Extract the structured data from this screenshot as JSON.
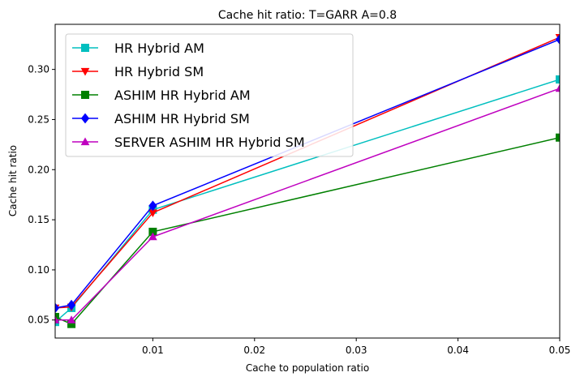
{
  "chart_data": {
    "type": "line",
    "title": "Cache hit ratio: T=GARR A=0.8",
    "xlabel": "Cache to population ratio",
    "ylabel": "Cache hit ratio",
    "xlim": [
      0.0004,
      0.05
    ],
    "ylim": [
      0.032,
      0.345
    ],
    "xticks": [
      0.01,
      0.02,
      0.03,
      0.04,
      0.05
    ],
    "xtick_labels": [
      "0.01",
      "0.02",
      "0.03",
      "0.04",
      "0.05"
    ],
    "yticks": [
      0.05,
      0.1,
      0.15,
      0.2,
      0.25,
      0.3
    ],
    "ytick_labels": [
      "0.05",
      "0.10",
      "0.15",
      "0.20",
      "0.25",
      "0.30"
    ],
    "grid": false,
    "legend_position": "top-left",
    "x": [
      0.0004,
      0.002,
      0.01,
      0.05
    ],
    "series": [
      {
        "name": "HR Hybrid AM",
        "color": "#00bfbf",
        "marker": "square",
        "values": [
          0.048,
          0.062,
          0.16,
          0.29
        ]
      },
      {
        "name": "HR Hybrid SM",
        "color": "#ff0000",
        "marker": "triangle-down",
        "values": [
          0.062,
          0.063,
          0.157,
          0.332
        ]
      },
      {
        "name": "ASHIM HR Hybrid AM",
        "color": "#008000",
        "marker": "square",
        "values": [
          0.053,
          0.046,
          0.138,
          0.232
        ]
      },
      {
        "name": "ASHIM HR Hybrid SM",
        "color": "#0000ff",
        "marker": "diamond",
        "values": [
          0.062,
          0.065,
          0.164,
          0.33
        ]
      },
      {
        "name": "SERVER ASHIM HR Hybrid SM",
        "color": "#bf00bf",
        "marker": "triangle-up",
        "values": [
          0.05,
          0.05,
          0.133,
          0.281
        ]
      }
    ]
  }
}
